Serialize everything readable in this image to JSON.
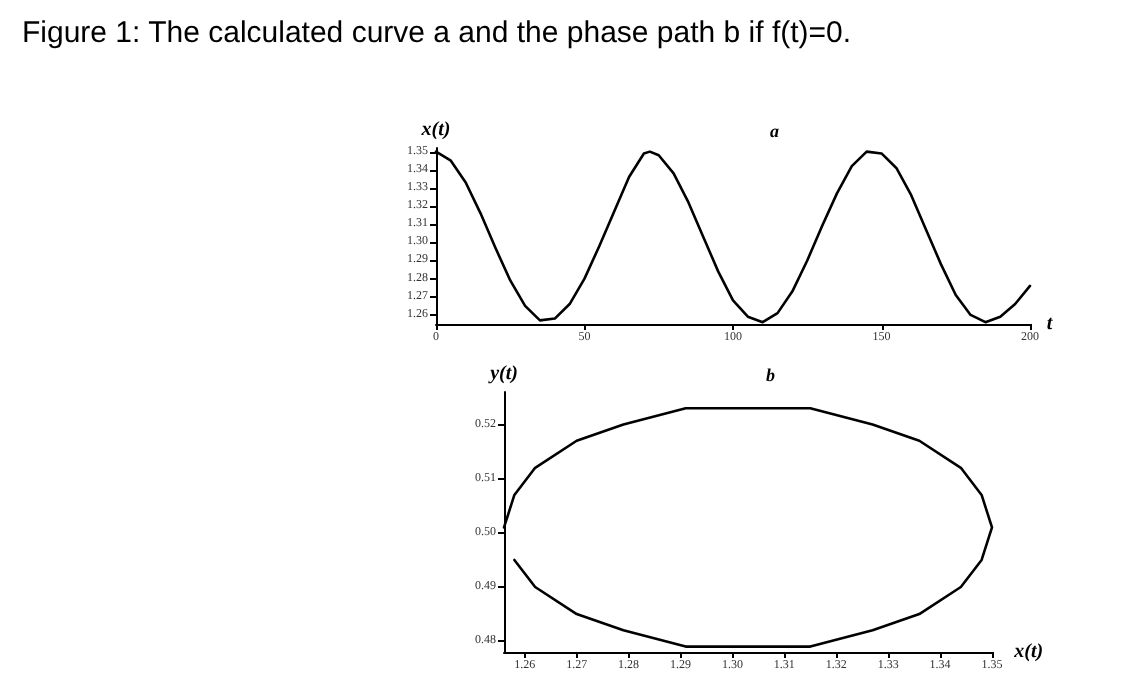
{
  "chart_data": [
    {
      "type": "line",
      "title": "Figure 1: The calculated curve a and the phase path b if f(t)=0.",
      "subtitle": "a",
      "xlabel": "t",
      "ylabel": "x(t)",
      "xlim": [
        0,
        200
      ],
      "xticks": [
        0,
        50,
        100,
        150,
        200
      ],
      "ylim": [
        1.255,
        1.352
      ],
      "yticks": [
        1.26,
        1.27,
        1.28,
        1.29,
        {
          "value": 1.3,
          "label": "1.30"
        },
        1.31,
        1.32,
        1.33,
        1.34,
        1.35
      ],
      "grid": false,
      "marker": "none",
      "line_style": "solid",
      "x": [
        0,
        5,
        10,
        15,
        20,
        25,
        30,
        35,
        40,
        45,
        50,
        55,
        60,
        65,
        70,
        72,
        75,
        80,
        85,
        90,
        95,
        100,
        105,
        110,
        115,
        120,
        125,
        130,
        135,
        140,
        145,
        150,
        155,
        160,
        165,
        170,
        175,
        180,
        185,
        190,
        195,
        200
      ],
      "series": [
        {
          "color": "#000000",
          "values": [
            1.35,
            1.345,
            1.333,
            1.316,
            1.297,
            1.279,
            1.265,
            1.257,
            1.258,
            1.266,
            1.28,
            1.298,
            1.317,
            1.336,
            1.349,
            1.35,
            1.348,
            1.338,
            1.322,
            1.303,
            1.284,
            1.268,
            1.259,
            1.256,
            1.261,
            1.273,
            1.29,
            1.309,
            1.327,
            1.342,
            1.35,
            1.349,
            1.341,
            1.326,
            1.307,
            1.288,
            1.271,
            1.26,
            1.256,
            1.259,
            1.266,
            1.276
          ]
        }
      ]
    },
    {
      "type": "line",
      "title": "b",
      "xlabel": "x(t)",
      "ylabel": "y(t)",
      "xlim": [
        1.256,
        1.35
      ],
      "xticks": [
        1.26,
        1.27,
        1.28,
        1.29,
        {
          "value": 1.3,
          "label": "1.30"
        },
        1.31,
        1.32,
        1.33,
        1.34,
        1.35
      ],
      "ylim": [
        0.478,
        0.526
      ],
      "yticks": [
        0.48,
        0.49,
        {
          "value": 0.5,
          "label": "0.50"
        },
        0.51,
        0.52
      ],
      "grid": false,
      "marker": "none",
      "line_style": "solid",
      "series": [
        {
          "color": "#000000",
          "x": [
            1.256,
            1.258,
            1.262,
            1.27,
            1.279,
            1.291,
            1.303,
            1.315,
            1.327,
            1.336,
            1.344,
            1.348,
            1.35,
            1.348,
            1.344,
            1.336,
            1.327,
            1.315,
            1.303,
            1.291,
            1.279,
            1.27,
            1.262,
            1.258
          ],
          "values": [
            0.501,
            0.507,
            0.512,
            0.517,
            0.52,
            0.523,
            0.523,
            0.523,
            0.52,
            0.517,
            0.512,
            0.507,
            0.501,
            0.495,
            0.49,
            0.485,
            0.482,
            0.479,
            0.479,
            0.479,
            0.482,
            0.485,
            0.49,
            0.495
          ]
        }
      ]
    }
  ]
}
